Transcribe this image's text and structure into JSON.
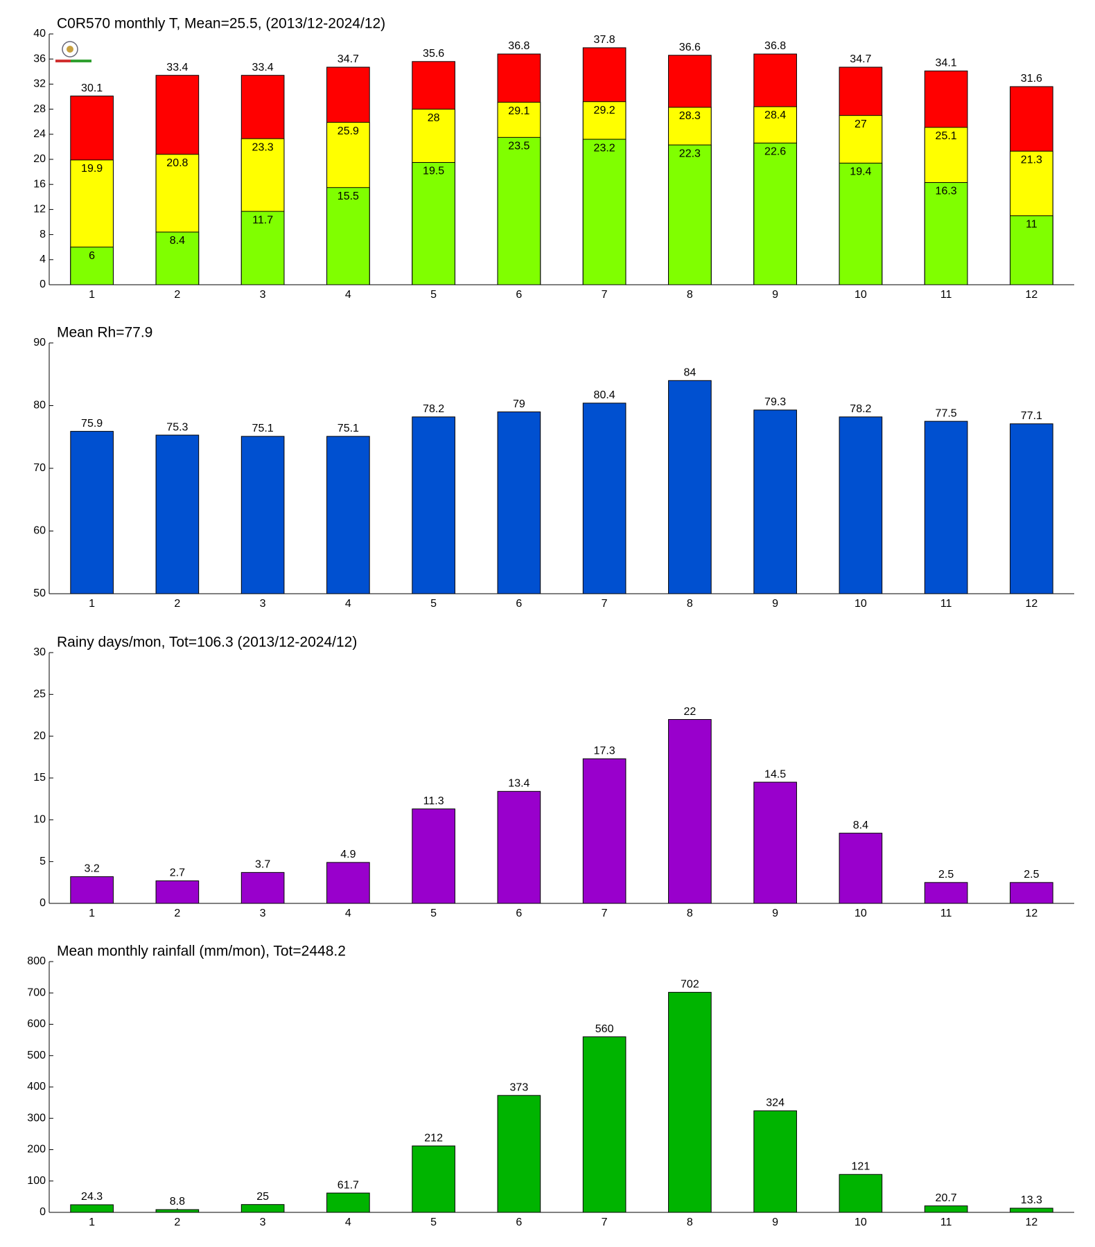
{
  "chart_data": [
    {
      "type": "bar",
      "title": "C0R570 monthly T, Mean=25.5, (2013/12-2024/12)",
      "categories": [
        "1",
        "2",
        "3",
        "4",
        "5",
        "6",
        "7",
        "8",
        "9",
        "10",
        "11",
        "12"
      ],
      "series": [
        {
          "color": "#ff0000",
          "values": [
            30.1,
            33.4,
            33.4,
            34.7,
            35.6,
            36.8,
            37.8,
            36.6,
            36.8,
            34.7,
            34.1,
            31.6
          ]
        },
        {
          "color": "#ffff00",
          "values": [
            19.9,
            20.8,
            23.3,
            25.9,
            28,
            29.1,
            29.2,
            28.3,
            28.4,
            27,
            25.1,
            21.3
          ]
        },
        {
          "color": "#80ff00",
          "values": [
            6,
            8.4,
            11.7,
            15.5,
            19.5,
            23.5,
            23.2,
            22.3,
            22.6,
            19.4,
            16.3,
            11
          ]
        }
      ],
      "ylim": [
        0,
        40
      ],
      "yticks": [
        0,
        4,
        8,
        12,
        16,
        20,
        24,
        28,
        32,
        36,
        40
      ]
    },
    {
      "type": "bar",
      "title": "Mean Rh=77.9",
      "categories": [
        "1",
        "2",
        "3",
        "4",
        "5",
        "6",
        "7",
        "8",
        "9",
        "10",
        "11",
        "12"
      ],
      "values": [
        75.9,
        75.3,
        75.1,
        75.1,
        78.2,
        79,
        80.4,
        84,
        79.3,
        78.2,
        77.5,
        77.1
      ],
      "color": "#0050d0",
      "ylim": [
        50,
        90
      ],
      "yticks": [
        50,
        60,
        70,
        80,
        90
      ]
    },
    {
      "type": "bar",
      "title": "Rainy days/mon, Tot=106.3 (2013/12-2024/12)",
      "categories": [
        "1",
        "2",
        "3",
        "4",
        "5",
        "6",
        "7",
        "8",
        "9",
        "10",
        "11",
        "12"
      ],
      "values": [
        3.2,
        2.7,
        3.7,
        4.9,
        11.3,
        13.4,
        17.3,
        22,
        14.5,
        8.4,
        2.5,
        2.5
      ],
      "color": "#9900cc",
      "ylim": [
        0,
        30
      ],
      "yticks": [
        0,
        5,
        10,
        15,
        20,
        25,
        30
      ]
    },
    {
      "type": "bar",
      "title": "Mean monthly rainfall (mm/mon), Tot=2448.2",
      "categories": [
        "1",
        "2",
        "3",
        "4",
        "5",
        "6",
        "7",
        "8",
        "9",
        "10",
        "11",
        "12"
      ],
      "values": [
        24.3,
        8.8,
        25,
        61.7,
        212,
        373,
        560,
        702,
        324,
        121,
        20.7,
        13.3
      ],
      "color": "#00b400",
      "ylim": [
        0,
        800
      ],
      "yticks": [
        0,
        100,
        200,
        300,
        400,
        500,
        600,
        700,
        800
      ]
    }
  ]
}
